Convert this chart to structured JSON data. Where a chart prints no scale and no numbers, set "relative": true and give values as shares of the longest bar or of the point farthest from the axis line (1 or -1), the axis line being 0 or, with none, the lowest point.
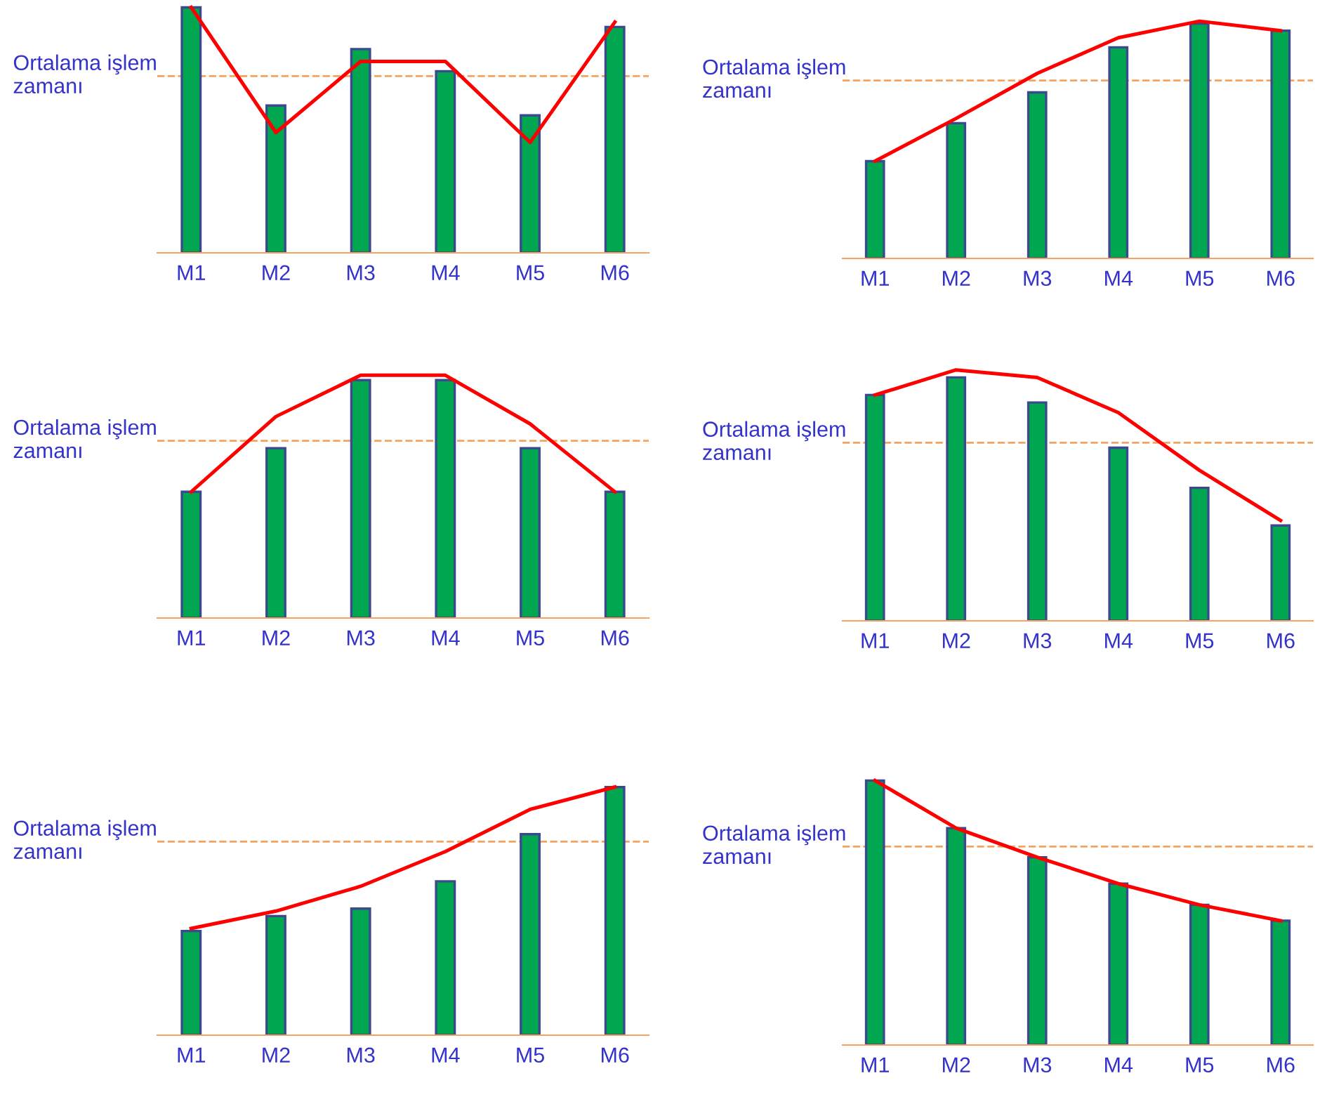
{
  "chart_data": [
    {
      "type": "bar",
      "relative": true,
      "categories": [
        "M1",
        "M2",
        "M3",
        "M4",
        "M5",
        "M6"
      ],
      "series": [
        {
          "color": "#00a650",
          "values": [
            1,
            0.6,
            0.83,
            0.74,
            0.56,
            0.92
          ]
        },
        {
          "type": "line",
          "color": "#ff0000",
          "values": [
            1,
            0.49,
            0.78,
            0.78,
            0.45,
            0.94
          ]
        }
      ],
      "ref_lines": [
        {
          "axis": "y",
          "value": 0.72,
          "label": "Ortalama işlem\nzamanı",
          "color": "#f4a460",
          "line_style": "dashed"
        }
      ],
      "grid": false,
      "legend": false,
      "marker": "none"
    },
    {
      "type": "bar",
      "relative": true,
      "categories": [
        "M1",
        "M2",
        "M3",
        "M4",
        "M5",
        "M6"
      ],
      "series": [
        {
          "color": "#00a650",
          "values": [
            0.41,
            0.57,
            0.7,
            0.89,
            0.99,
            0.96
          ]
        },
        {
          "type": "line",
          "color": "#ff0000",
          "values": [
            0.41,
            0.59,
            0.78,
            0.93,
            1,
            0.96
          ]
        }
      ],
      "ref_lines": [
        {
          "axis": "y",
          "value": 0.75,
          "label": "Ortalama işlem\nzamanı",
          "color": "#f4a460",
          "line_style": "dashed"
        }
      ],
      "grid": false,
      "legend": false,
      "marker": "none"
    },
    {
      "type": "bar",
      "relative": true,
      "categories": [
        "M1",
        "M2",
        "M3",
        "M4",
        "M5",
        "M6"
      ],
      "series": [
        {
          "color": "#00a650",
          "values": [
            0.52,
            0.7,
            0.98,
            0.98,
            0.7,
            0.52
          ]
        },
        {
          "type": "line",
          "color": "#ff0000",
          "values": [
            0.52,
            0.83,
            1,
            1,
            0.8,
            0.52
          ]
        }
      ],
      "ref_lines": [
        {
          "axis": "y",
          "value": 0.73,
          "label": "Ortalama işlem\nzamanı",
          "color": "#f4a460",
          "line_style": "dashed"
        }
      ],
      "grid": false,
      "legend": false,
      "marker": "none"
    },
    {
      "type": "bar",
      "relative": true,
      "categories": [
        "M1",
        "M2",
        "M3",
        "M4",
        "M5",
        "M6"
      ],
      "series": [
        {
          "color": "#00a650",
          "values": [
            0.9,
            0.97,
            0.87,
            0.69,
            0.53,
            0.38
          ]
        },
        {
          "type": "line",
          "color": "#ff0000",
          "values": [
            0.9,
            1,
            0.97,
            0.83,
            0.6,
            0.4
          ]
        }
      ],
      "ref_lines": [
        {
          "axis": "y",
          "value": 0.71,
          "label": "Ortalama işlem\nzamanı",
          "color": "#f4a460",
          "line_style": "dashed"
        }
      ],
      "grid": false,
      "legend": false,
      "marker": "none"
    },
    {
      "type": "bar",
      "relative": true,
      "categories": [
        "M1",
        "M2",
        "M3",
        "M4",
        "M5",
        "M6"
      ],
      "series": [
        {
          "color": "#00a650",
          "values": [
            0.42,
            0.48,
            0.51,
            0.62,
            0.81,
            1
          ]
        },
        {
          "type": "line",
          "color": "#ff0000",
          "values": [
            0.43,
            0.5,
            0.6,
            0.74,
            0.91,
            1
          ]
        }
      ],
      "ref_lines": [
        {
          "axis": "y",
          "value": 0.78,
          "label": "Ortalama işlem\nzamanı",
          "color": "#f4a460",
          "line_style": "dashed"
        }
      ],
      "grid": false,
      "legend": false,
      "marker": "none"
    },
    {
      "type": "bar",
      "relative": true,
      "categories": [
        "M1",
        "M2",
        "M3",
        "M4",
        "M5",
        "M6"
      ],
      "series": [
        {
          "color": "#00a650",
          "values": [
            1,
            0.82,
            0.71,
            0.61,
            0.53,
            0.47
          ]
        },
        {
          "type": "line",
          "color": "#ff0000",
          "values": [
            1,
            0.82,
            0.71,
            0.61,
            0.53,
            0.47
          ]
        }
      ],
      "ref_lines": [
        {
          "axis": "y",
          "value": 0.75,
          "label": "Ortalama işlem\nzamanı",
          "color": "#f4a460",
          "line_style": "dashed"
        }
      ],
      "grid": false,
      "legend": false,
      "marker": "none"
    }
  ]
}
